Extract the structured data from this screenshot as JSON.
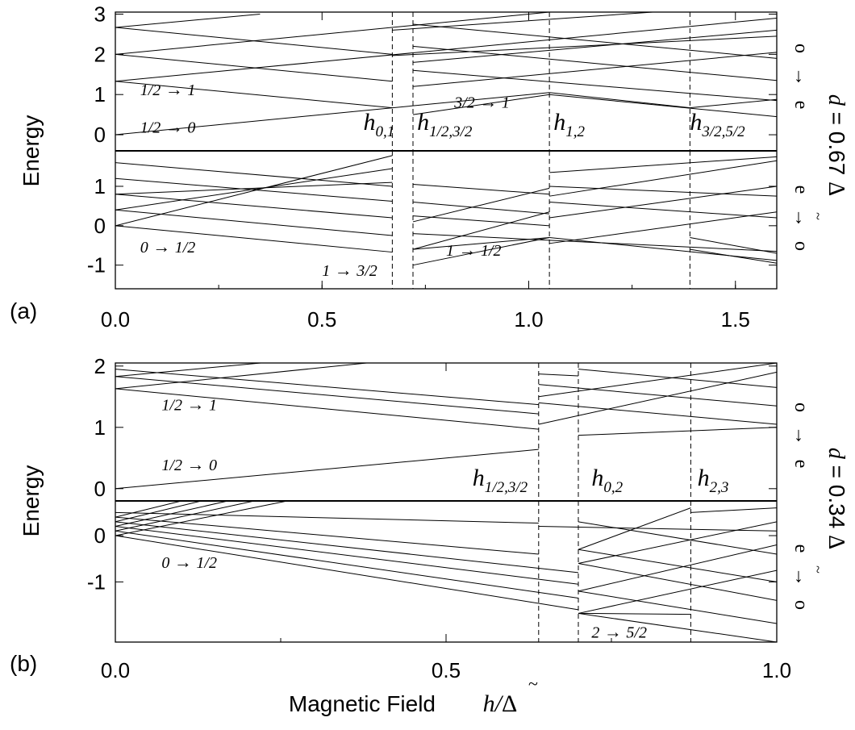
{
  "chart_data": [
    {
      "type": "line",
      "panel_label": "(a)",
      "ylabel": "Energy",
      "side_label": {
        "prefix": "d",
        "equals": " = 0.67 ",
        "delta": "Δ",
        "tilde": "~"
      },
      "xlim": [
        0,
        1.6
      ],
      "x_ticks": [
        0.0,
        0.5,
        1.0,
        1.5
      ],
      "x_tick_labels": [
        "0.0",
        "0.5",
        "1.0",
        "1.5"
      ],
      "upper": {
        "ylim": [
          -0.4,
          3.05
        ],
        "y_ticks": [
          0,
          1,
          2,
          3
        ],
        "y_tick_labels": [
          "0",
          "1",
          "2",
          "3"
        ],
        "side_text": [
          "o",
          "→",
          "e"
        ],
        "breaks": [
          0.67,
          0.72,
          1.05,
          1.39
        ],
        "segments": [
          [
            [
              0,
              0.0
            ],
            [
              0.72,
              0.72
            ]
          ],
          [
            [
              0.72,
              0.72
            ],
            [
              1.05,
              1.05
            ]
          ],
          [
            [
              1.05,
              1.05
            ],
            [
              1.39,
              0.67
            ]
          ],
          [
            [
              1.39,
              0.67
            ],
            [
              1.6,
              0.88
            ]
          ],
          [
            [
              0,
              1.33
            ],
            [
              0.67,
              0.67
            ]
          ],
          [
            [
              0.72,
              0.5
            ],
            [
              1.05,
              1.0
            ]
          ],
          [
            [
              1.05,
              1.0
            ],
            [
              1.6,
              0.45
            ]
          ],
          [
            [
              0,
              2.0
            ],
            [
              0.67,
              1.33
            ]
          ],
          [
            [
              0,
              2.67
            ],
            [
              0.67,
              2.0
            ]
          ],
          [
            [
              0,
              1.33
            ],
            [
              1.6,
              2.9
            ]
          ],
          [
            [
              0,
              2.0
            ],
            [
              1.05,
              3.05
            ]
          ],
          [
            [
              0,
              2.67
            ],
            [
              0.35,
              3.0
            ]
          ],
          [
            [
              0.72,
              1.6
            ],
            [
              1.6,
              0.85
            ]
          ],
          [
            [
              0.72,
              2.2
            ],
            [
              1.6,
              1.35
            ]
          ],
          [
            [
              0.72,
              2.75
            ],
            [
              1.6,
              1.9
            ]
          ],
          [
            [
              0.72,
              1.2
            ],
            [
              1.6,
              2.05
            ]
          ],
          [
            [
              0.72,
              1.8
            ],
            [
              1.6,
              2.6
            ]
          ],
          [
            [
              0.67,
              1.97
            ],
            [
              1.6,
              2.45
            ]
          ],
          [
            [
              0.67,
              2.6
            ],
            [
              1.3,
              3.05
            ]
          ]
        ],
        "annotations": [
          {
            "text": "1/2 → 1",
            "x": 0.06,
            "y": 0.98
          },
          {
            "text": "1/2 → 0",
            "x": 0.06,
            "y": 0.05
          },
          {
            "text": "3/2 → 1",
            "x": 0.82,
            "y": 0.67
          }
        ],
        "field_labels": [
          {
            "sub": "0,1",
            "x": 0.6,
            "y": 0.12
          },
          {
            "sub": "1/2,3/2",
            "x": 0.73,
            "y": 0.12
          },
          {
            "sub": "1,2",
            "x": 1.06,
            "y": 0.12
          },
          {
            "sub": "3/2,5/2",
            "x": 1.39,
            "y": 0.12
          }
        ]
      },
      "lower": {
        "ylim": [
          -1.6,
          1.9
        ],
        "y_ticks": [
          -1,
          0,
          1
        ],
        "y_tick_labels": [
          "-1",
          "0",
          "1"
        ],
        "side_text": [
          "e",
          "→",
          "o"
        ],
        "breaks": [
          0.67,
          0.72,
          1.05,
          1.39
        ],
        "segments": [
          [
            [
              0,
              0.0
            ],
            [
              0.67,
              -0.67
            ]
          ],
          [
            [
              0.72,
              -0.6
            ],
            [
              1.05,
              -0.3
            ]
          ],
          [
            [
              1.05,
              -0.3
            ],
            [
              1.6,
              -0.88
            ]
          ],
          [
            [
              0,
              0.4
            ],
            [
              0.67,
              -0.25
            ]
          ],
          [
            [
              0.72,
              -0.2
            ],
            [
              1.6,
              -0.65
            ]
          ],
          [
            [
              0,
              0.8
            ],
            [
              0.67,
              0.2
            ]
          ],
          [
            [
              0.72,
              0.25
            ],
            [
              1.05,
              0.0
            ]
          ],
          [
            [
              0,
              1.2
            ],
            [
              0.67,
              0.62
            ]
          ],
          [
            [
              0.72,
              0.6
            ],
            [
              1.05,
              0.3
            ]
          ],
          [
            [
              0,
              1.6
            ],
            [
              0.67,
              1.0
            ]
          ],
          [
            [
              0.72,
              1.05
            ],
            [
              1.05,
              0.8
            ]
          ],
          [
            [
              0,
              0.0
            ],
            [
              0.67,
              1.78
            ]
          ],
          [
            [
              0,
              0.4
            ],
            [
              0.67,
              1.45
            ]
          ],
          [
            [
              0,
              0.8
            ],
            [
              0.67,
              1.1
            ]
          ],
          [
            [
              0.72,
              -1.0
            ],
            [
              1.05,
              -0.3
            ]
          ],
          [
            [
              0.72,
              -0.6
            ],
            [
              1.05,
              0.35
            ]
          ],
          [
            [
              0.72,
              0.1
            ],
            [
              1.05,
              0.95
            ]
          ],
          [
            [
              1.05,
              1.35
            ],
            [
              1.6,
              1.75
            ]
          ],
          [
            [
              1.05,
              1.0
            ],
            [
              1.6,
              0.75
            ]
          ],
          [
            [
              1.05,
              0.6
            ],
            [
              1.6,
              0.2
            ]
          ],
          [
            [
              1.05,
              -0.45
            ],
            [
              1.6,
              0.35
            ]
          ],
          [
            [
              1.05,
              0.2
            ],
            [
              1.6,
              1.0
            ]
          ],
          [
            [
              1.05,
              0.75
            ],
            [
              1.6,
              1.65
            ]
          ],
          [
            [
              1.39,
              -0.6
            ],
            [
              1.6,
              -0.95
            ]
          ],
          [
            [
              1.39,
              -0.3
            ],
            [
              1.6,
              -0.7
            ]
          ]
        ],
        "annotations": [
          {
            "text": "0 → 1/2",
            "x": 0.06,
            "y": -0.68
          },
          {
            "text": "1 → 3/2",
            "x": 0.5,
            "y": -1.27
          },
          {
            "text": "1 → 1/2",
            "x": 0.8,
            "y": -0.76
          }
        ]
      }
    },
    {
      "type": "line",
      "panel_label": "(b)",
      "ylabel": "Energy",
      "side_label": {
        "prefix": "d",
        "equals": " = 0.34 ",
        "delta": "Δ",
        "tilde": "~"
      },
      "xlim": [
        0,
        1.0
      ],
      "x_ticks": [
        0.0,
        0.5,
        1.0
      ],
      "x_tick_labels": [
        "0.0",
        "0.5",
        "1.0"
      ],
      "upper": {
        "ylim": [
          -0.2,
          2.05
        ],
        "y_ticks": [
          0,
          1,
          2
        ],
        "y_tick_labels": [
          "0",
          "1",
          "2"
        ],
        "side_text": [
          "o",
          "→",
          "e"
        ],
        "breaks": [
          0.64,
          0.7,
          0.87
        ],
        "segments": [
          [
            [
              0,
              0.0
            ],
            [
              0.64,
              0.64
            ]
          ],
          [
            [
              0,
              1.63
            ],
            [
              0.64,
              0.97
            ]
          ],
          [
            [
              0,
              1.83
            ],
            [
              0.64,
              1.22
            ]
          ],
          [
            [
              0,
              1.95
            ],
            [
              0.64,
              1.37
            ]
          ],
          [
            [
              0,
              1.63
            ],
            [
              0.38,
              2.05
            ]
          ],
          [
            [
              0,
              1.83
            ],
            [
              0.22,
              2.05
            ]
          ],
          [
            [
              0.64,
              1.87
            ],
            [
              0.7,
              1.84
            ]
          ],
          [
            [
              0.7,
              0.87
            ],
            [
              1.0,
              1.0
            ]
          ],
          [
            [
              0.64,
              1.05
            ],
            [
              1.0,
              1.9
            ]
          ],
          [
            [
              0.64,
              1.5
            ],
            [
              1.0,
              2.05
            ]
          ],
          [
            [
              0.64,
              1.7
            ],
            [
              1.0,
              1.35
            ]
          ],
          [
            [
              0.64,
              1.4
            ],
            [
              1.0,
              1.05
            ]
          ],
          [
            [
              0.7,
              1.95
            ],
            [
              1.0,
              1.65
            ]
          ]
        ],
        "annotations": [
          {
            "text": "1/2 → 1",
            "x": 0.07,
            "y": 1.28
          },
          {
            "text": "1/2 → 0",
            "x": 0.07,
            "y": 0.3
          }
        ],
        "field_labels": [
          {
            "sub": "1/2,3/2",
            "x": 0.54,
            "y": 0.05
          },
          {
            "sub": "0,2",
            "x": 0.72,
            "y": 0.05
          },
          {
            "sub": "2,3",
            "x": 0.88,
            "y": 0.05
          }
        ]
      },
      "lower": {
        "ylim": [
          -2.3,
          0.75
        ],
        "y_ticks": [
          -1,
          0
        ],
        "y_tick_labels": [
          "-1",
          "0"
        ],
        "side_text": [
          "e",
          "→",
          "o"
        ],
        "breaks": [
          0.64,
          0.7,
          0.87
        ],
        "segments": [
          [
            [
              0,
              0.0
            ],
            [
              0.7,
              -1.6
            ]
          ],
          [
            [
              0,
              0.1
            ],
            [
              0.7,
              -1.35
            ]
          ],
          [
            [
              0,
              0.2
            ],
            [
              0.7,
              -1.05
            ]
          ],
          [
            [
              0,
              0.3
            ],
            [
              0.7,
              -0.8
            ]
          ],
          [
            [
              0,
              0.4
            ],
            [
              0.64,
              -0.4
            ]
          ],
          [
            [
              0,
              0.5
            ],
            [
              0.64,
              0.27
            ]
          ],
          [
            [
              0,
              0.0
            ],
            [
              0.26,
              0.75
            ]
          ],
          [
            [
              0,
              0.1
            ],
            [
              0.21,
              0.75
            ]
          ],
          [
            [
              0,
              0.2
            ],
            [
              0.17,
              0.75
            ]
          ],
          [
            [
              0,
              0.3
            ],
            [
              0.13,
              0.75
            ]
          ],
          [
            [
              0,
              0.4
            ],
            [
              0.1,
              0.75
            ]
          ],
          [
            [
              0.7,
              -1.68
            ],
            [
              0.87,
              -1.7
            ]
          ],
          [
            [
              0.7,
              -1.68
            ],
            [
              1.0,
              -2.3
            ]
          ],
          [
            [
              0.7,
              -1.68
            ],
            [
              1.0,
              -0.75
            ]
          ],
          [
            [
              0.7,
              -1.2
            ],
            [
              1.0,
              -0.2
            ]
          ],
          [
            [
              0.7,
              -0.6
            ],
            [
              1.0,
              0.3
            ]
          ],
          [
            [
              0.7,
              -0.3
            ],
            [
              0.87,
              0.6
            ]
          ],
          [
            [
              0.7,
              -1.2
            ],
            [
              1.0,
              -1.9
            ]
          ],
          [
            [
              0.7,
              -0.6
            ],
            [
              1.0,
              -1.4
            ]
          ],
          [
            [
              0.7,
              -0.3
            ],
            [
              1.0,
              -1.0
            ]
          ],
          [
            [
              0.7,
              0.3
            ],
            [
              1.0,
              -0.4
            ]
          ],
          [
            [
              0.64,
              0.2
            ],
            [
              1.0,
              0.1
            ]
          ],
          [
            [
              0.87,
              0.5
            ],
            [
              1.0,
              0.6
            ]
          ]
        ],
        "annotations": [
          {
            "text": "0 → 1/2",
            "x": 0.07,
            "y": -0.7
          },
          {
            "text": "2 → 5/2",
            "x": 0.72,
            "y": -2.2
          }
        ]
      }
    }
  ],
  "xlabel": {
    "text": "Magnetic Field",
    "math_prefix": "h/",
    "delta": "Δ",
    "tilde": "~"
  }
}
